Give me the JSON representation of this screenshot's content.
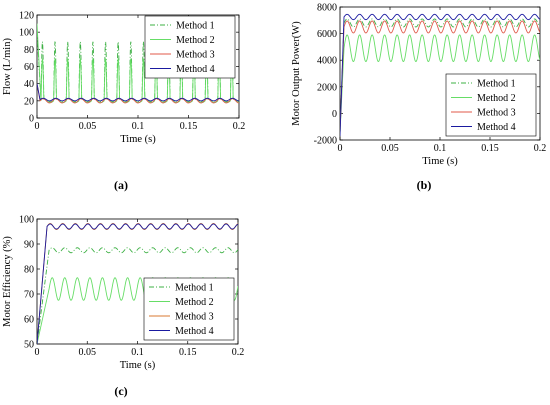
{
  "panels": [
    {
      "id": "a",
      "label": "(a)",
      "chart_data": {
        "type": "line",
        "xlabel": "Time (s)",
        "ylabel": "Flow (L/min)",
        "xlim": [
          0,
          0.2
        ],
        "ylim": [
          0,
          120
        ],
        "xticks": [
          0,
          0.05,
          0.1,
          0.15,
          0.2
        ],
        "yticks": [
          0,
          20,
          40,
          60,
          80,
          100,
          120
        ],
        "xtick_labels": [
          "0",
          "0.05",
          "0.1",
          "0.15",
          "0.2"
        ],
        "ytick_labels": [
          "0",
          "20",
          "40",
          "60",
          "80",
          "100",
          "120"
        ],
        "legend_position": "top-right",
        "series": [
          {
            "name": "Method 1",
            "color": "#3cb043",
            "style": "dashdot",
            "model": {
              "kind": "spiky",
              "start": 100,
              "settle_t": 0.004,
              "base": 20.5,
              "amp": 1.5,
              "period": 0.0125,
              "spike": 88,
              "duty": 0.22
            }
          },
          {
            "name": "Method 2",
            "color": "#66dd66",
            "style": "solid",
            "model": {
              "kind": "spiky",
              "start": 110,
              "settle_t": 0.004,
              "base": 20,
              "amp": 2,
              "period": 0.0125,
              "spike": 68,
              "duty": 0.22
            }
          },
          {
            "name": "Method 3",
            "color": "#e05a4a",
            "style": "solid",
            "model": {
              "kind": "ripple",
              "start": 40,
              "settle_t": 0.003,
              "base": 20,
              "amp": 2.5,
              "period": 0.0125
            }
          },
          {
            "name": "Method 4",
            "color": "#1a1aa0",
            "style": "solid",
            "model": {
              "kind": "ripple",
              "start": 40,
              "settle_t": 0.003,
              "base": 21.5,
              "amp": 1.5,
              "period": 0.0125
            }
          }
        ]
      }
    },
    {
      "id": "b",
      "label": "(b)",
      "chart_data": {
        "type": "line",
        "xlabel": "Time (s)",
        "ylabel": "Motor Output Power(W)",
        "xlim": [
          0,
          0.2
        ],
        "ylim": [
          -2000,
          8000
        ],
        "xticks": [
          0,
          0.05,
          0.1,
          0.15,
          0.2
        ],
        "yticks": [
          -2000,
          0,
          2000,
          4000,
          6000,
          8000
        ],
        "xtick_labels": [
          "0",
          "0.05",
          "0.1",
          "0.15",
          "0.2"
        ],
        "ytick_labels": [
          "-2000",
          "0",
          "2000",
          "4000",
          "6000",
          "8000"
        ],
        "legend_position": "bottom-right",
        "series": [
          {
            "name": "Method 1",
            "color": "#3cb043",
            "style": "dashdot",
            "model": {
              "kind": "ripple",
              "start": -1500,
              "settle_t": 0.004,
              "base": 6800,
              "amp": 300,
              "period": 0.0125
            }
          },
          {
            "name": "Method 2",
            "color": "#66dd66",
            "style": "solid",
            "model": {
              "kind": "ripple",
              "start": -1500,
              "settle_t": 0.004,
              "base": 4900,
              "amp": 1000,
              "period": 0.0125
            }
          },
          {
            "name": "Method 3",
            "color": "#e05a4a",
            "style": "solid",
            "model": {
              "kind": "ripple",
              "start": -1500,
              "settle_t": 0.004,
              "base": 6500,
              "amp": 450,
              "period": 0.0125
            }
          },
          {
            "name": "Method 4",
            "color": "#1a1aa0",
            "style": "solid",
            "model": {
              "kind": "ripple",
              "start": -1700,
              "settle_t": 0.004,
              "base": 7250,
              "amp": 200,
              "period": 0.0125
            }
          }
        ]
      }
    },
    {
      "id": "c",
      "label": "(c)",
      "chart_data": {
        "type": "line",
        "xlabel": "Time (s)",
        "ylabel": "Motor Efficiency (%)",
        "xlim": [
          0,
          0.2
        ],
        "ylim": [
          50,
          100
        ],
        "xticks": [
          0,
          0.05,
          0.1,
          0.15,
          0.2
        ],
        "yticks": [
          50,
          60,
          70,
          80,
          90,
          100
        ],
        "xtick_labels": [
          "0",
          "0.05",
          "0.1",
          "0.15",
          "0.2"
        ],
        "ytick_labels": [
          "50",
          "60",
          "70",
          "80",
          "90",
          "100"
        ],
        "legend_position": "bottom-right",
        "series": [
          {
            "name": "Method 1",
            "color": "#3cb043",
            "style": "dashdot",
            "model": {
              "kind": "ripple",
              "start": 50,
              "settle_t": 0.012,
              "base": 87.5,
              "amp": 1,
              "period": 0.0125
            }
          },
          {
            "name": "Method 2",
            "color": "#66dd66",
            "style": "solid",
            "model": {
              "kind": "ripple",
              "start": 50,
              "settle_t": 0.012,
              "base": 72,
              "amp": 4.5,
              "period": 0.0125
            }
          },
          {
            "name": "Method 3",
            "color": "#d97a30",
            "style": "solid",
            "model": {
              "kind": "ripple",
              "start": 50,
              "settle_t": 0.01,
              "base": 97,
              "amp": 1.2,
              "period": 0.0125
            }
          },
          {
            "name": "Method 4",
            "color": "#1a1aa0",
            "style": "solid",
            "model": {
              "kind": "ripple",
              "start": 50,
              "settle_t": 0.01,
              "base": 97,
              "amp": 1,
              "period": 0.0125
            }
          }
        ]
      }
    }
  ]
}
